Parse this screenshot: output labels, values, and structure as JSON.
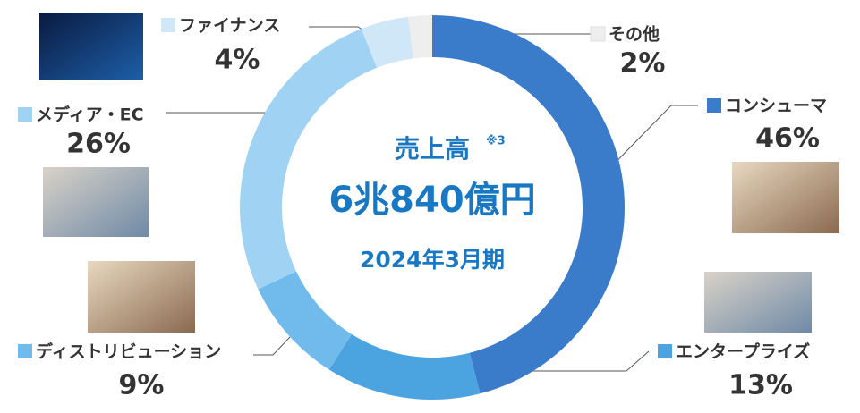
{
  "chart_data": {
    "type": "pie",
    "donut": true,
    "categories": [
      "コンシューマ",
      "エンタープライズ",
      "ディストリビューション",
      "メディア・EC",
      "ファイナンス",
      "その他"
    ],
    "values": [
      46,
      13,
      9,
      26,
      4,
      2
    ],
    "value_labels": [
      "46%",
      "13%",
      "9%",
      "26%",
      "4%",
      "2%"
    ],
    "colors": [
      "#3b7cca",
      "#4ba3e0",
      "#70bbec",
      "#a0d2f3",
      "#d0e7f7",
      "#eeeeee"
    ],
    "center_title": "売上高",
    "center_note": "※3",
    "center_value": "6兆840億円",
    "center_period": "2024年3月期"
  }
}
